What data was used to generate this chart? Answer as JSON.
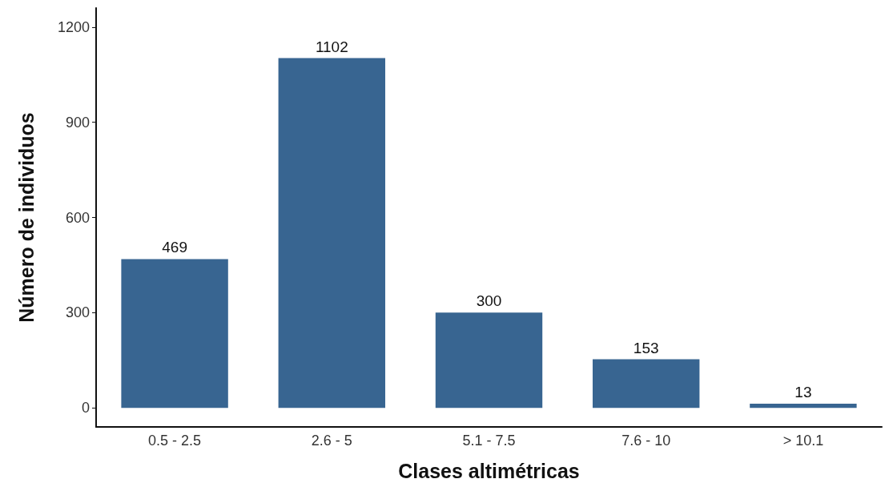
{
  "chart_data": {
    "type": "bar",
    "xlabel": "Clases altimétricas",
    "ylabel": "Número de individuos",
    "categories": [
      "0.5 - 2.5",
      "2.6 - 5",
      "5.1 - 7.5",
      "7.6 - 10",
      "> 10.1"
    ],
    "values": [
      469,
      1102,
      300,
      153,
      13
    ],
    "color": "#386591",
    "ylim": [
      -60,
      1260
    ],
    "yticks": [
      0,
      300,
      600,
      900,
      1200
    ],
    "grid": false,
    "data_labels": true
  }
}
